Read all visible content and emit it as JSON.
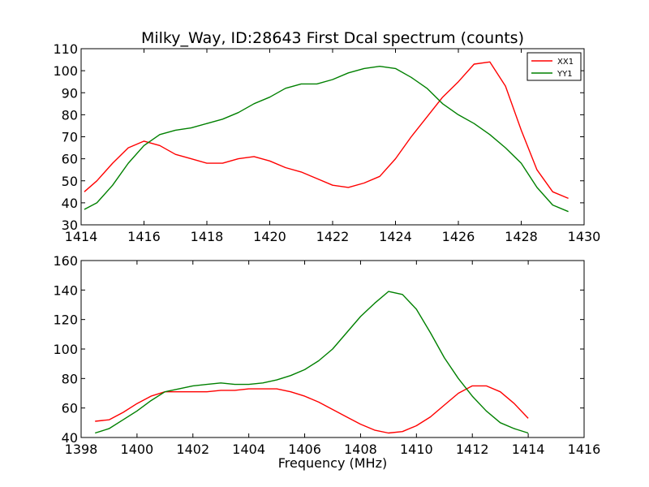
{
  "chart_data": [
    {
      "type": "line",
      "title": "Milky_Way, ID:28643 First Dcal spectrum (counts)",
      "xlabel": "",
      "ylabel": "",
      "xlim": [
        1414,
        1430
      ],
      "ylim": [
        30,
        110
      ],
      "xticks": [
        "1414",
        "1416",
        "1418",
        "1420",
        "1422",
        "1424",
        "1426",
        "1428",
        "1430"
      ],
      "yticks": [
        "30",
        "40",
        "50",
        "60",
        "70",
        "80",
        "90",
        "100",
        "110"
      ],
      "legend_position": "top-right",
      "series": [
        {
          "name": "XX1",
          "color": "#ff0000",
          "x": [
            1414.1,
            1414.5,
            1415.0,
            1415.5,
            1416.0,
            1416.5,
            1417.0,
            1417.5,
            1418.0,
            1418.5,
            1419.0,
            1419.5,
            1420.0,
            1420.5,
            1421.0,
            1421.5,
            1422.0,
            1422.5,
            1423.0,
            1423.5,
            1424.0,
            1424.5,
            1425.0,
            1425.5,
            1426.0,
            1426.5,
            1427.0,
            1427.5,
            1428.0,
            1428.5,
            1429.0,
            1429.5
          ],
          "values": [
            45,
            50,
            58,
            65,
            68,
            66,
            62,
            60,
            58,
            58,
            60,
            61,
            59,
            56,
            54,
            51,
            48,
            47,
            49,
            52,
            60,
            70,
            79,
            88,
            95,
            103,
            104,
            93,
            73,
            55,
            45,
            42
          ]
        },
        {
          "name": "YY1",
          "color": "#008000",
          "x": [
            1414.1,
            1414.5,
            1415.0,
            1415.5,
            1416.0,
            1416.5,
            1417.0,
            1417.5,
            1418.0,
            1418.5,
            1419.0,
            1419.5,
            1420.0,
            1420.5,
            1421.0,
            1421.5,
            1422.0,
            1422.5,
            1423.0,
            1423.5,
            1424.0,
            1424.5,
            1425.0,
            1425.5,
            1426.0,
            1426.5,
            1427.0,
            1427.5,
            1428.0,
            1428.5,
            1429.0,
            1429.5
          ],
          "values": [
            37,
            40,
            48,
            58,
            66,
            71,
            73,
            74,
            76,
            78,
            81,
            85,
            88,
            92,
            94,
            94,
            96,
            99,
            101,
            102,
            101,
            97,
            92,
            85,
            80,
            76,
            71,
            65,
            58,
            47,
            39,
            36
          ]
        }
      ]
    },
    {
      "type": "line",
      "title": "",
      "xlabel": "Frequency (MHz)",
      "ylabel": "",
      "xlim": [
        1398,
        1416
      ],
      "ylim": [
        40,
        160
      ],
      "xticks": [
        "1398",
        "1400",
        "1402",
        "1404",
        "1406",
        "1408",
        "1410",
        "1412",
        "1414",
        "1416"
      ],
      "yticks": [
        "40",
        "60",
        "80",
        "100",
        "120",
        "140",
        "160"
      ],
      "series": [
        {
          "name": "XX1",
          "color": "#ff0000",
          "x": [
            1398.5,
            1399.0,
            1399.5,
            1400.0,
            1400.5,
            1401.0,
            1401.5,
            1402.0,
            1402.5,
            1403.0,
            1403.5,
            1404.0,
            1404.5,
            1405.0,
            1405.5,
            1406.0,
            1406.5,
            1407.0,
            1407.5,
            1408.0,
            1408.5,
            1409.0,
            1409.5,
            1410.0,
            1410.5,
            1411.0,
            1411.5,
            1412.0,
            1412.5,
            1413.0,
            1413.5,
            1414.0
          ],
          "values": [
            51,
            52,
            57,
            63,
            68,
            71,
            71,
            71,
            71,
            72,
            72,
            73,
            73,
            73,
            71,
            68,
            64,
            59,
            54,
            49,
            45,
            43,
            44,
            48,
            54,
            62,
            70,
            75,
            75,
            71,
            63,
            53
          ]
        },
        {
          "name": "YY1",
          "color": "#008000",
          "x": [
            1398.5,
            1399.0,
            1399.5,
            1400.0,
            1400.5,
            1401.0,
            1401.5,
            1402.0,
            1402.5,
            1403.0,
            1403.5,
            1404.0,
            1404.5,
            1405.0,
            1405.5,
            1406.0,
            1406.5,
            1407.0,
            1407.5,
            1408.0,
            1408.5,
            1409.0,
            1409.5,
            1410.0,
            1410.5,
            1411.0,
            1411.5,
            1412.0,
            1412.5,
            1413.0,
            1413.5,
            1414.0
          ],
          "values": [
            43,
            46,
            52,
            58,
            65,
            71,
            73,
            75,
            76,
            77,
            76,
            76,
            77,
            79,
            82,
            86,
            92,
            100,
            111,
            122,
            131,
            139,
            137,
            127,
            111,
            94,
            80,
            68,
            58,
            50,
            46,
            43
          ]
        }
      ]
    }
  ]
}
